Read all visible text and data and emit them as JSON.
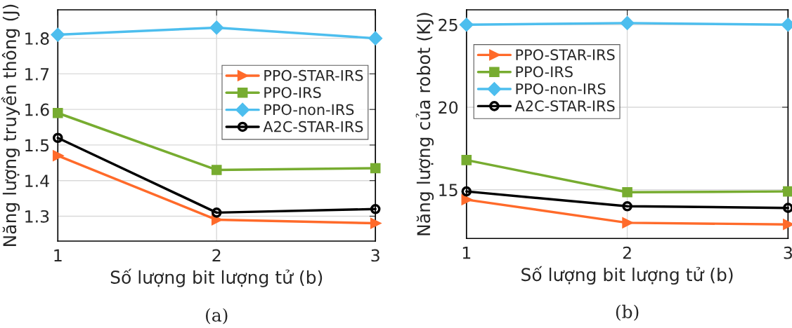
{
  "chart_data": [
    {
      "type": "line",
      "xlabel": "Số lượng bit lượng tử (b)",
      "ylabel": "Năng lượng truyền thông (J)",
      "x": [
        1,
        2,
        3
      ],
      "xlim": [
        1,
        3
      ],
      "xticks": [
        1,
        2,
        3
      ],
      "ylim": [
        1.23,
        1.88
      ],
      "yticks": [
        1.3,
        1.4,
        1.5,
        1.6,
        1.7,
        1.8
      ],
      "grid": true,
      "legend": "right",
      "annotations": [
        "(a)"
      ],
      "series": [
        {
          "name": "PPO-STAR-IRS",
          "color": "#ff6a2a",
          "marker": "triangle",
          "values": [
            1.47,
            1.29,
            1.28
          ]
        },
        {
          "name": "PPO-IRS",
          "color": "#77ac30",
          "marker": "square",
          "values": [
            1.59,
            1.43,
            1.435
          ]
        },
        {
          "name": "PPO-non-IRS",
          "color": "#4dbeee",
          "marker": "diamond",
          "values": [
            1.81,
            1.83,
            1.8
          ]
        },
        {
          "name": "A2C-STAR-IRS",
          "color": "#000000",
          "marker": "circle",
          "values": [
            1.52,
            1.31,
            1.32
          ]
        }
      ]
    },
    {
      "type": "line",
      "xlabel": "Số lượng bit lượng tử (b)",
      "ylabel": "Năng lượng của robot (KJ)",
      "x": [
        1,
        2,
        3
      ],
      "xlim": [
        1,
        3
      ],
      "xticks": [
        1,
        2,
        3
      ],
      "ylim": [
        12.05,
        25.9
      ],
      "yticks": [
        15,
        20,
        25
      ],
      "grid": true,
      "legend": "top left",
      "annotations": [
        "(b)"
      ],
      "series": [
        {
          "name": "PPO-STAR-IRS",
          "color": "#ff6a2a",
          "marker": "triangle",
          "values": [
            14.4,
            13.0,
            12.9
          ]
        },
        {
          "name": "PPO-IRS",
          "color": "#77ac30",
          "marker": "square",
          "values": [
            16.8,
            14.85,
            14.9
          ]
        },
        {
          "name": "PPO-non-IRS",
          "color": "#4dbeee",
          "marker": "diamond",
          "values": [
            25.0,
            25.1,
            25.0
          ]
        },
        {
          "name": "A2C-STAR-IRS",
          "color": "#000000",
          "marker": "circle",
          "values": [
            14.9,
            14.0,
            13.9
          ]
        }
      ]
    }
  ]
}
